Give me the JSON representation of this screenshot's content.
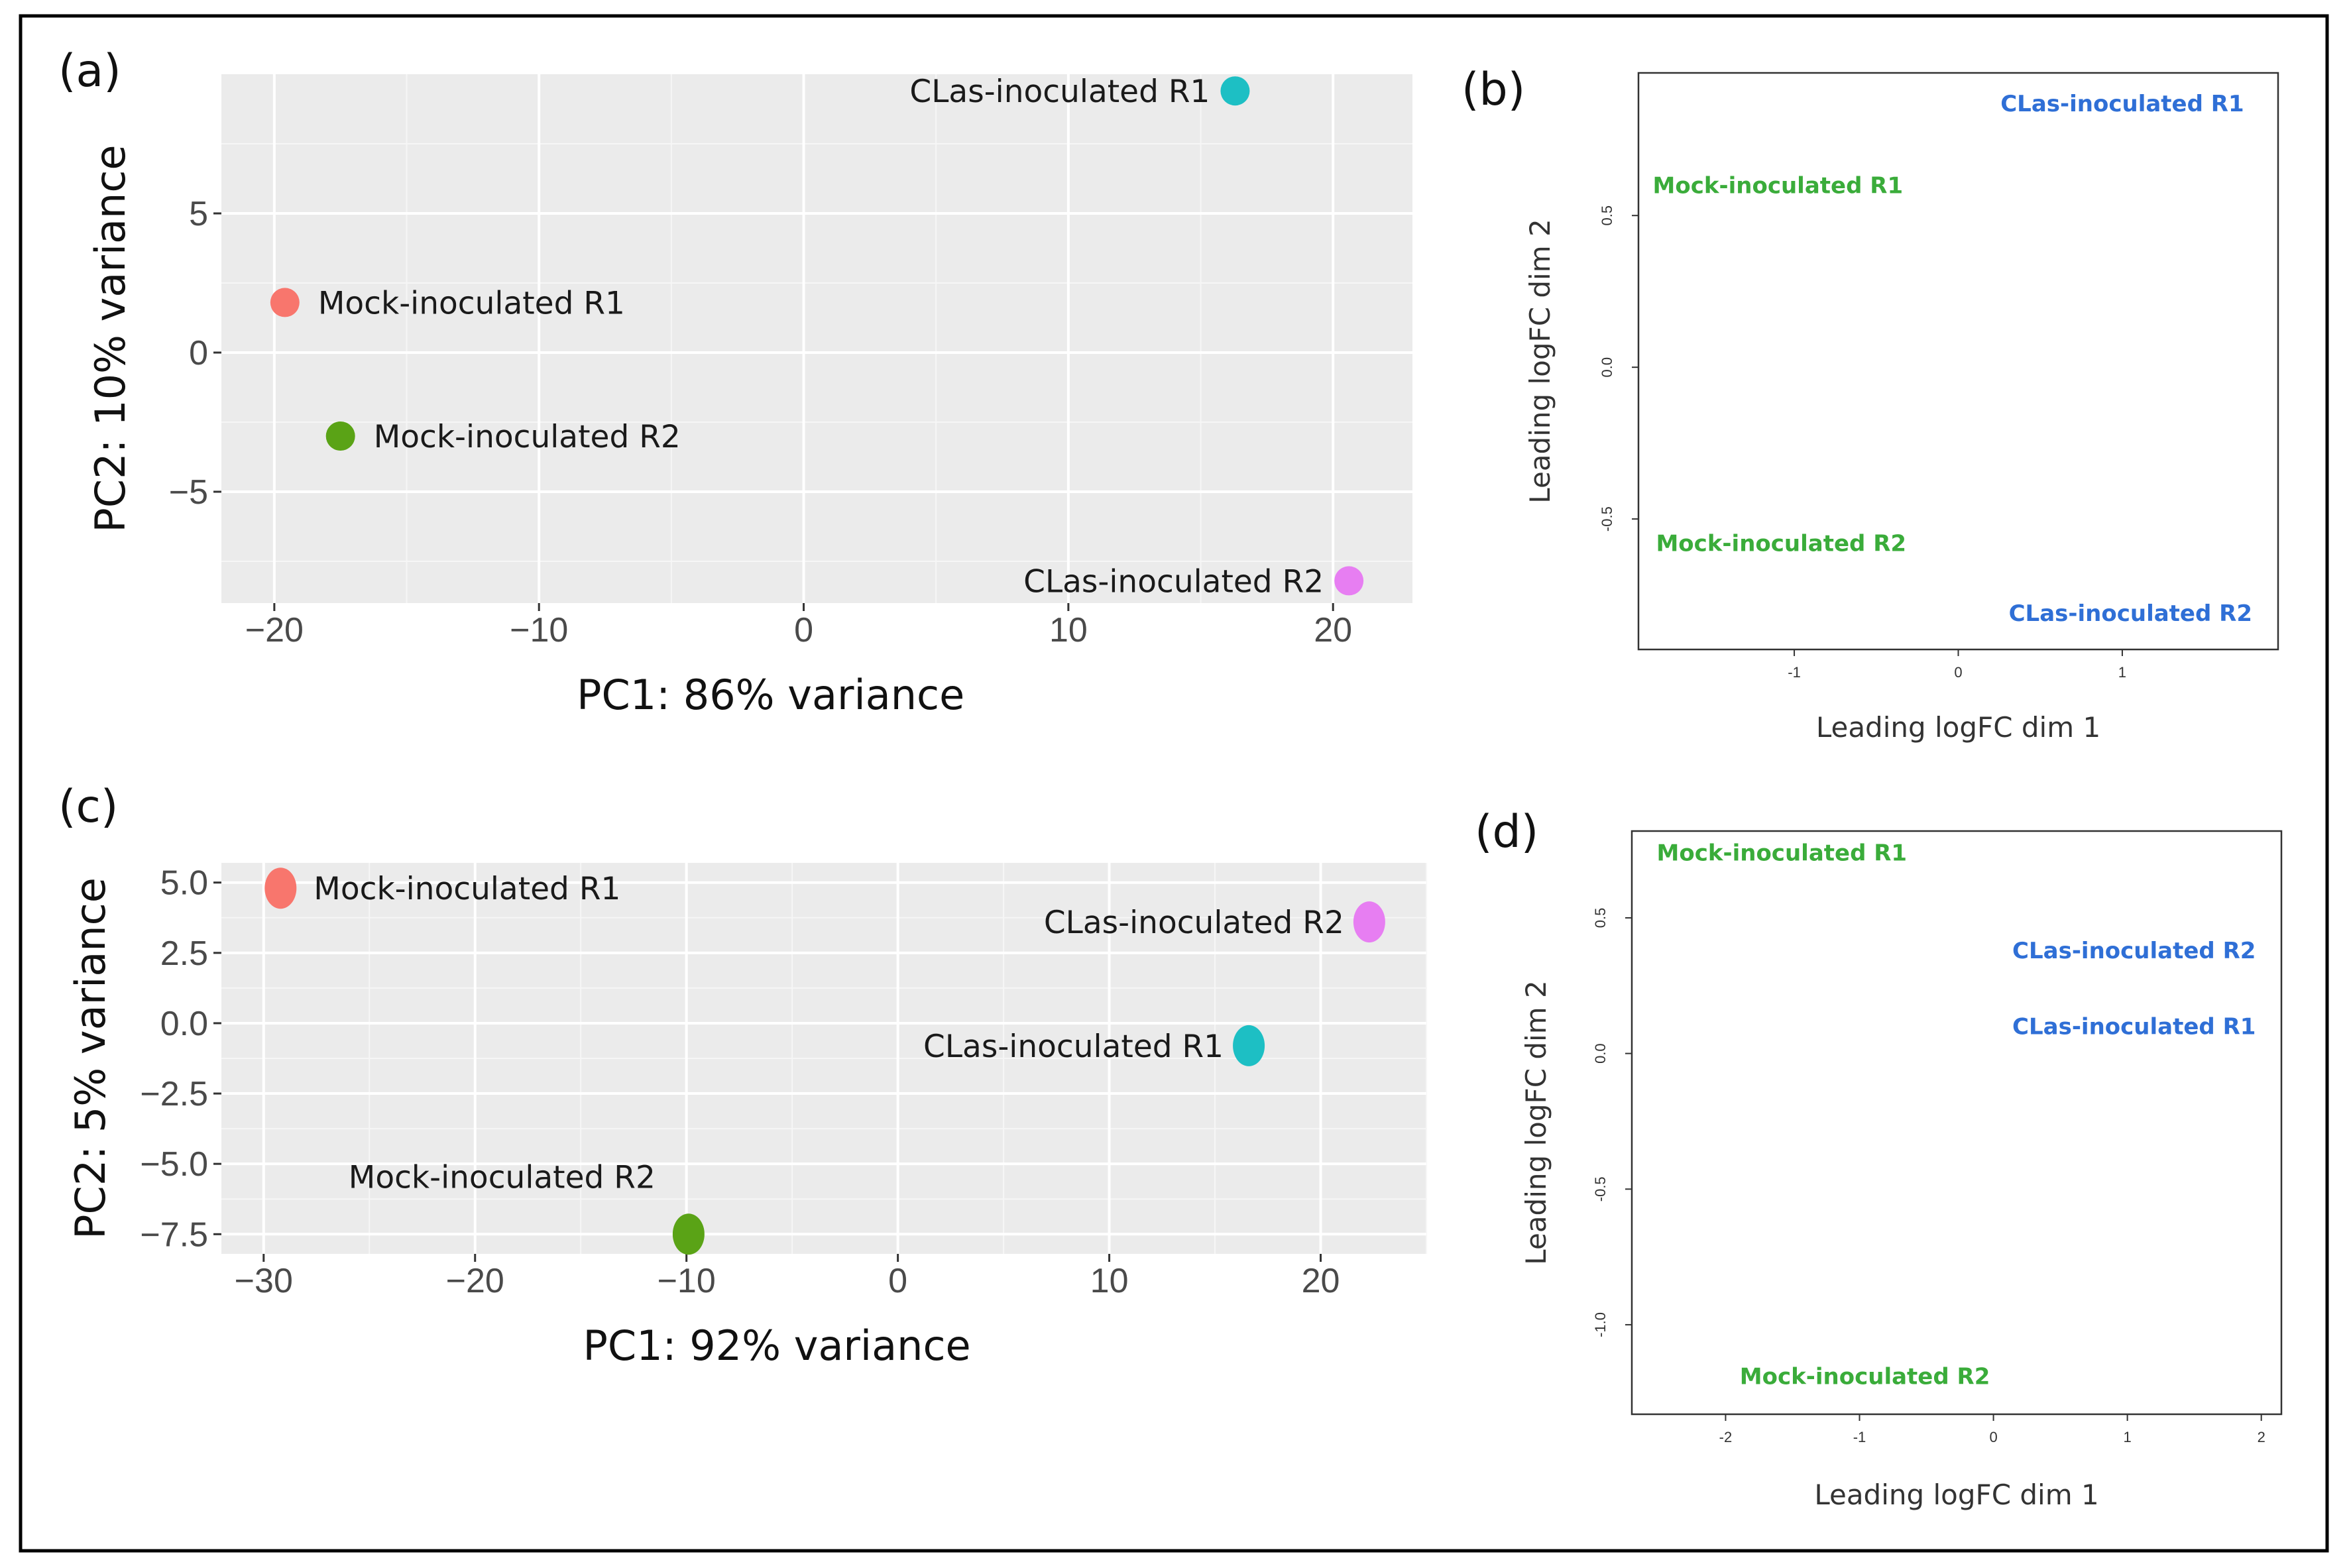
{
  "chart_data": [
    {
      "panel": "(a)",
      "type": "scatter",
      "xlabel": "PC1: 86% variance",
      "ylabel": "PC2: 10% variance",
      "xlim": [
        -22,
        23
      ],
      "ylim": [
        -9,
        10
      ],
      "xticks": [
        -20,
        -10,
        0,
        10,
        20
      ],
      "xtick_labels": [
        "−20",
        "−10",
        "0",
        "10",
        "20"
      ],
      "yticks": [
        -5,
        0,
        5
      ],
      "ytick_labels": [
        "−5",
        "0",
        "5"
      ],
      "grid": true,
      "points": [
        {
          "label": "CLas-inoculated R1",
          "x": 16.3,
          "y": 9.4,
          "color": "#1dbfc4",
          "label_side": "left"
        },
        {
          "label": "Mock-inoculated R1",
          "x": -19.6,
          "y": 1.8,
          "color": "#f8766d",
          "label_side": "right"
        },
        {
          "label": "Mock-inoculated R2",
          "x": -17.5,
          "y": -3.0,
          "color": "#5aa316",
          "label_side": "right"
        },
        {
          "label": "CLas-inoculated R2",
          "x": 20.6,
          "y": -8.2,
          "color": "#e77ef2",
          "label_side": "left"
        }
      ]
    },
    {
      "panel": "(b)",
      "type": "scatter",
      "xlabel": "Leading logFC dim 1",
      "ylabel": "Leading logFC dim 2",
      "xlim": [
        -1.95,
        1.95
      ],
      "ylim": [
        -0.93,
        0.97
      ],
      "xticks": [
        -1,
        0,
        1
      ],
      "xtick_labels": [
        "-1",
        "0",
        "1"
      ],
      "yticks": [
        -0.5,
        0.0,
        0.5
      ],
      "ytick_labels": [
        "-0.5",
        "0.0",
        "0.5"
      ],
      "grid": false,
      "points": [
        {
          "label": "CLas-inoculated R1",
          "x": 1.0,
          "y": 0.87,
          "color": "#2f6fd6"
        },
        {
          "label": "Mock-inoculated R1",
          "x": -1.1,
          "y": 0.6,
          "color": "#3aac3a"
        },
        {
          "label": "Mock-inoculated R2",
          "x": -1.08,
          "y": -0.58,
          "color": "#3aac3a"
        },
        {
          "label": "CLas-inoculated R2",
          "x": 1.05,
          "y": -0.81,
          "color": "#2f6fd6"
        }
      ]
    },
    {
      "panel": "(c)",
      "type": "scatter",
      "xlabel": "PC1: 92% variance",
      "ylabel": "PC2: 5% variance",
      "xlim": [
        -32,
        25
      ],
      "ylim": [
        -8.2,
        5.7
      ],
      "xticks": [
        -30,
        -20,
        -10,
        0,
        10,
        20
      ],
      "xtick_labels": [
        "−30",
        "−20",
        "−10",
        "0",
        "10",
        "20"
      ],
      "yticks": [
        -7.5,
        -5.0,
        -2.5,
        0.0,
        2.5,
        5.0
      ],
      "ytick_labels": [
        "−7.5",
        "−5.0",
        "−2.5",
        "0.0",
        "2.5",
        "5.0"
      ],
      "grid": true,
      "points": [
        {
          "label": "Mock-inoculated R1",
          "x": -29.2,
          "y": 4.8,
          "color": "#f8766d",
          "label_side": "right"
        },
        {
          "label": "CLas-inoculated R2",
          "x": 22.3,
          "y": 3.6,
          "color": "#e77ef2",
          "label_side": "left"
        },
        {
          "label": "CLas-inoculated R1",
          "x": 16.6,
          "y": -0.8,
          "color": "#1dbfc4",
          "label_side": "left"
        },
        {
          "label": "Mock-inoculated R2",
          "x": -9.9,
          "y": -7.5,
          "color": "#5aa316",
          "label_side": "above"
        }
      ]
    },
    {
      "panel": "(d)",
      "type": "scatter",
      "xlabel": "Leading logFC dim 1",
      "ylabel": "Leading logFC dim 2",
      "xlim": [
        -2.7,
        2.15
      ],
      "ylim": [
        -1.33,
        0.82
      ],
      "xticks": [
        -2,
        -1,
        0,
        1,
        2
      ],
      "xtick_labels": [
        "-2",
        "-1",
        "0",
        "1",
        "2"
      ],
      "yticks": [
        -1.0,
        -0.5,
        0.0,
        0.5
      ],
      "ytick_labels": [
        "-1.0",
        "-0.5",
        "0.0",
        "0.5"
      ],
      "grid": false,
      "points": [
        {
          "label": "Mock-inoculated R1",
          "x": -1.58,
          "y": 0.74,
          "color": "#3aac3a"
        },
        {
          "label": "CLas-inoculated R2",
          "x": 1.05,
          "y": 0.38,
          "color": "#2f6fd6"
        },
        {
          "label": "CLas-inoculated R1",
          "x": 1.05,
          "y": 0.1,
          "color": "#2f6fd6"
        },
        {
          "label": "Mock-inoculated R2",
          "x": -0.96,
          "y": -1.19,
          "color": "#3aac3a"
        }
      ]
    }
  ]
}
